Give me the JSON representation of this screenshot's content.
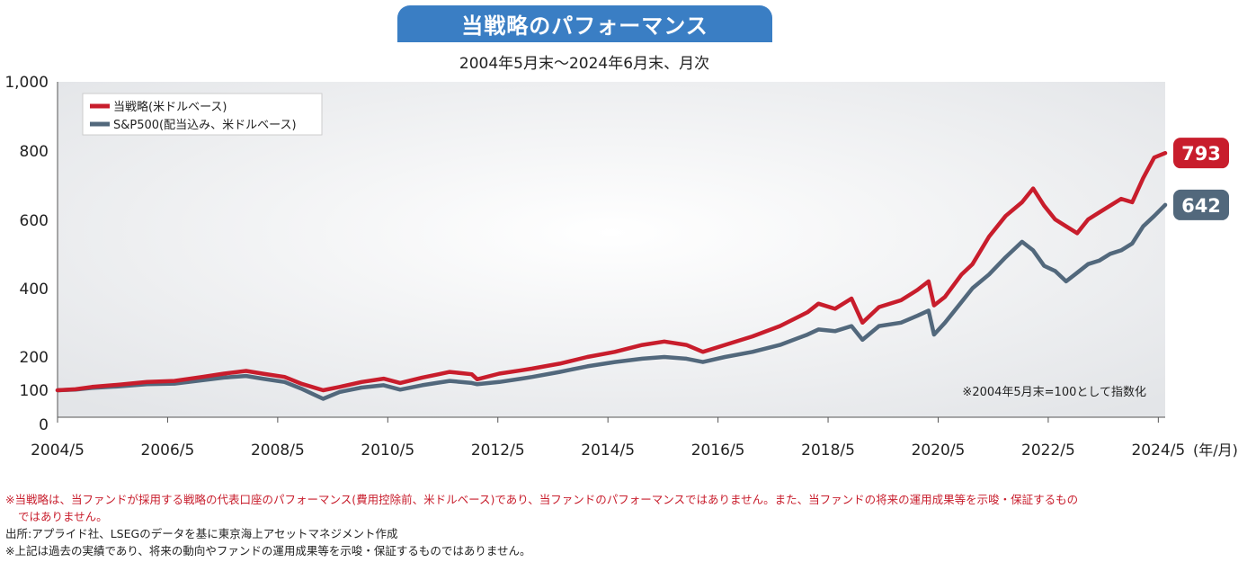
{
  "header": {
    "title": "当戦略のパフォーマンス",
    "subtitle": "2004年5月末〜2024年6月末、月次"
  },
  "colors": {
    "strategy": "#c81d2c",
    "sp500": "#52687c",
    "title_bg": "#3a7ec4"
  },
  "chart_data": {
    "type": "line",
    "y_ticks": [
      "1,000",
      "800",
      "600",
      "400",
      "200",
      "100",
      "0"
    ],
    "y_tick_values": [
      1000,
      800,
      600,
      400,
      200,
      100,
      0
    ],
    "x_ticks": [
      "2004/5",
      "2006/5",
      "2008/5",
      "2010/5",
      "2012/5",
      "2014/5",
      "2016/5",
      "2018/5",
      "2020/5",
      "2022/5",
      "2024/5"
    ],
    "x_unit": "(年/月)",
    "ylim": [
      0,
      1000
    ],
    "xlim": [
      2004.375,
      2024.5
    ],
    "grid": false,
    "legend_position": "top-left",
    "note": "※2004年5月末=100として指数化",
    "series": [
      {
        "name": "当戦略(米ドルベース)",
        "color": "#c81d2c",
        "end_label": "793",
        "points": [
          [
            2004.375,
            100
          ],
          [
            2004.7,
            103
          ],
          [
            2005.0,
            110
          ],
          [
            2005.5,
            117
          ],
          [
            2006.0,
            125
          ],
          [
            2006.5,
            128
          ],
          [
            2007.0,
            140
          ],
          [
            2007.4,
            150
          ],
          [
            2007.8,
            158
          ],
          [
            2008.1,
            150
          ],
          [
            2008.5,
            140
          ],
          [
            2008.8,
            120
          ],
          [
            2009.0,
            110
          ],
          [
            2009.2,
            100
          ],
          [
            2009.5,
            110
          ],
          [
            2009.9,
            125
          ],
          [
            2010.3,
            135
          ],
          [
            2010.6,
            122
          ],
          [
            2011.0,
            138
          ],
          [
            2011.3,
            148
          ],
          [
            2011.5,
            155
          ],
          [
            2011.9,
            148
          ],
          [
            2012.0,
            133
          ],
          [
            2012.4,
            150
          ],
          [
            2012.8,
            160
          ],
          [
            2013.0,
            165
          ],
          [
            2013.5,
            180
          ],
          [
            2014.0,
            200
          ],
          [
            2014.5,
            215
          ],
          [
            2015.0,
            235
          ],
          [
            2015.4,
            245
          ],
          [
            2015.8,
            235
          ],
          [
            2016.1,
            215
          ],
          [
            2016.5,
            235
          ],
          [
            2017.0,
            260
          ],
          [
            2017.5,
            290
          ],
          [
            2018.0,
            330
          ],
          [
            2018.2,
            355
          ],
          [
            2018.5,
            340
          ],
          [
            2018.8,
            370
          ],
          [
            2019.0,
            300
          ],
          [
            2019.3,
            345
          ],
          [
            2019.7,
            365
          ],
          [
            2020.0,
            395
          ],
          [
            2020.2,
            420
          ],
          [
            2020.3,
            350
          ],
          [
            2020.5,
            375
          ],
          [
            2020.8,
            440
          ],
          [
            2021.0,
            470
          ],
          [
            2021.3,
            550
          ],
          [
            2021.6,
            610
          ],
          [
            2021.9,
            650
          ],
          [
            2022.1,
            690
          ],
          [
            2022.3,
            640
          ],
          [
            2022.5,
            600
          ],
          [
            2022.7,
            580
          ],
          [
            2022.9,
            560
          ],
          [
            2023.1,
            600
          ],
          [
            2023.3,
            620
          ],
          [
            2023.5,
            640
          ],
          [
            2023.7,
            660
          ],
          [
            2023.9,
            650
          ],
          [
            2024.1,
            720
          ],
          [
            2024.3,
            780
          ],
          [
            2024.5,
            793
          ]
        ]
      },
      {
        "name": "S&P500(配当込み、米ドルベース)",
        "color": "#52687c",
        "end_label": "642",
        "points": [
          [
            2004.375,
            100
          ],
          [
            2004.7,
            102
          ],
          [
            2005.0,
            107
          ],
          [
            2005.5,
            112
          ],
          [
            2006.0,
            118
          ],
          [
            2006.5,
            120
          ],
          [
            2007.0,
            130
          ],
          [
            2007.4,
            138
          ],
          [
            2007.8,
            143
          ],
          [
            2008.1,
            135
          ],
          [
            2008.5,
            125
          ],
          [
            2008.8,
            105
          ],
          [
            2009.0,
            90
          ],
          [
            2009.2,
            75
          ],
          [
            2009.5,
            95
          ],
          [
            2009.9,
            108
          ],
          [
            2010.3,
            115
          ],
          [
            2010.6,
            102
          ],
          [
            2011.0,
            115
          ],
          [
            2011.3,
            123
          ],
          [
            2011.5,
            128
          ],
          [
            2011.9,
            122
          ],
          [
            2012.0,
            118
          ],
          [
            2012.4,
            125
          ],
          [
            2012.8,
            135
          ],
          [
            2013.0,
            140
          ],
          [
            2013.5,
            155
          ],
          [
            2014.0,
            172
          ],
          [
            2014.5,
            185
          ],
          [
            2015.0,
            195
          ],
          [
            2015.4,
            200
          ],
          [
            2015.8,
            195
          ],
          [
            2016.1,
            185
          ],
          [
            2016.5,
            200
          ],
          [
            2017.0,
            215
          ],
          [
            2017.5,
            235
          ],
          [
            2018.0,
            265
          ],
          [
            2018.2,
            280
          ],
          [
            2018.5,
            275
          ],
          [
            2018.8,
            290
          ],
          [
            2019.0,
            250
          ],
          [
            2019.3,
            290
          ],
          [
            2019.7,
            300
          ],
          [
            2020.0,
            320
          ],
          [
            2020.2,
            335
          ],
          [
            2020.3,
            265
          ],
          [
            2020.5,
            300
          ],
          [
            2020.8,
            360
          ],
          [
            2021.0,
            400
          ],
          [
            2021.3,
            440
          ],
          [
            2021.6,
            490
          ],
          [
            2021.9,
            535
          ],
          [
            2022.1,
            510
          ],
          [
            2022.3,
            465
          ],
          [
            2022.5,
            450
          ],
          [
            2022.7,
            420
          ],
          [
            2022.9,
            445
          ],
          [
            2023.1,
            470
          ],
          [
            2023.3,
            480
          ],
          [
            2023.5,
            500
          ],
          [
            2023.7,
            510
          ],
          [
            2023.9,
            530
          ],
          [
            2024.1,
            580
          ],
          [
            2024.3,
            610
          ],
          [
            2024.5,
            642
          ]
        ]
      }
    ]
  },
  "footnotes": {
    "line1": "※当戦略は、当ファンドが採用する戦略の代表口座のパフォーマンス(費用控除前、米ドルベース)であり、当ファンドのパフォーマンスではありません。また、当ファンドの将来の運用成果等を示唆・保証するもの",
    "line1b": "ではありません。",
    "line2": "出所:アプライド社、LSEGのデータを基に東京海上アセットマネジメント作成",
    "line3": "※上記は過去の実績であり、将来の動向やファンドの運用成果等を示唆・保証するものではありません。"
  }
}
